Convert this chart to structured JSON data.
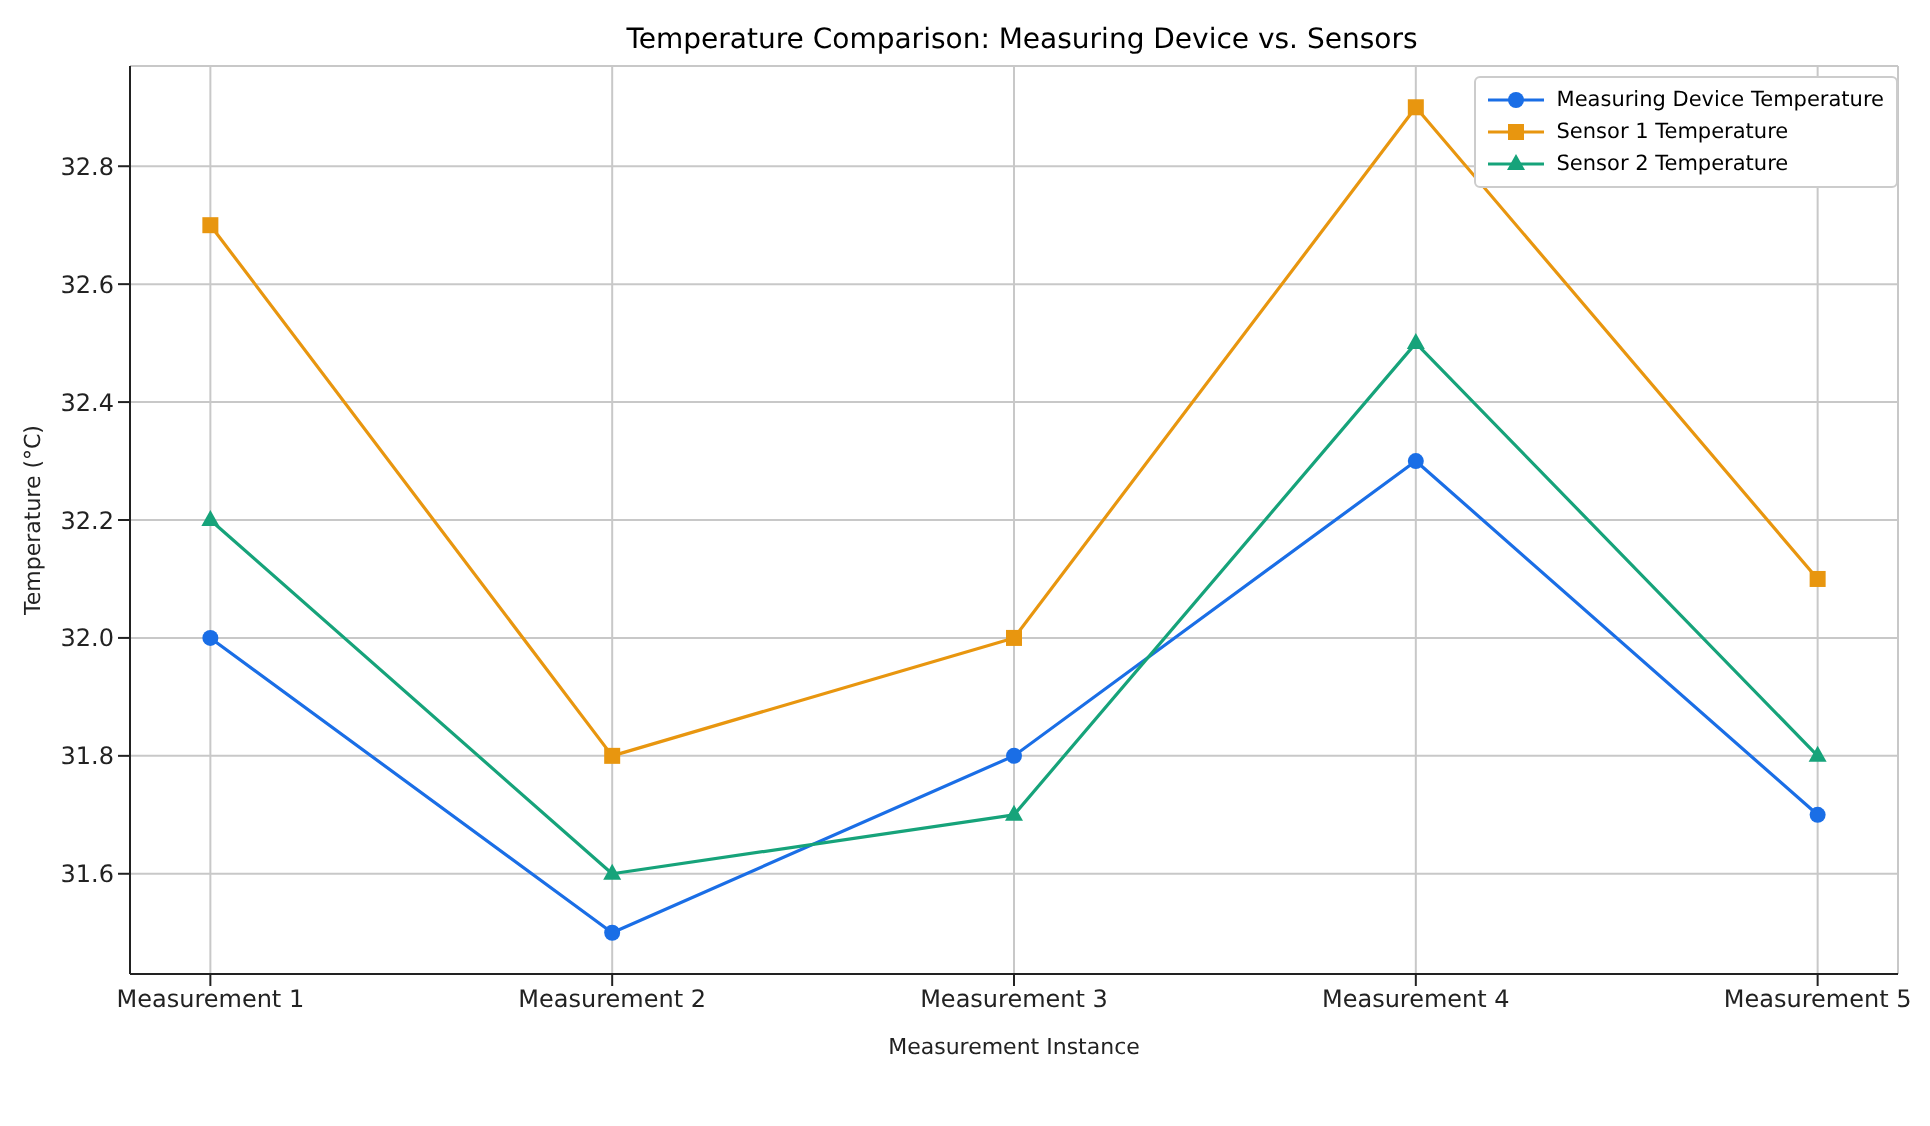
{
  "chart_data": {
    "type": "line",
    "title": "Temperature Comparison: Measuring Device vs. Sensors",
    "xlabel": "Measurement Instance",
    "ylabel": "Temperature (°C)",
    "categories": [
      "Measurement 1",
      "Measurement 2",
      "Measurement 3",
      "Measurement 4",
      "Measurement 5"
    ],
    "series": [
      {
        "name": "Measuring Device Temperature",
        "color": "#1a6ee6",
        "marker": "circle",
        "values": [
          32.0,
          31.5,
          31.8,
          32.3,
          31.7
        ]
      },
      {
        "name": "Sensor 1 Temperature",
        "color": "#e8960f",
        "marker": "square",
        "values": [
          32.7,
          31.8,
          32.0,
          32.9,
          32.1
        ]
      },
      {
        "name": "Sensor 2 Temperature",
        "color": "#16a37a",
        "marker": "triangle",
        "values": [
          32.2,
          31.6,
          31.7,
          32.5,
          31.8
        ]
      }
    ],
    "ylim": [
      31.43,
      32.97
    ],
    "yticks": [
      31.6,
      31.8,
      {
        "value": 32,
        "label": "32.0"
      },
      32.2,
      32.4,
      32.6,
      32.8
    ],
    "grid": true,
    "legend": "top right",
    "line_style": "solid"
  }
}
